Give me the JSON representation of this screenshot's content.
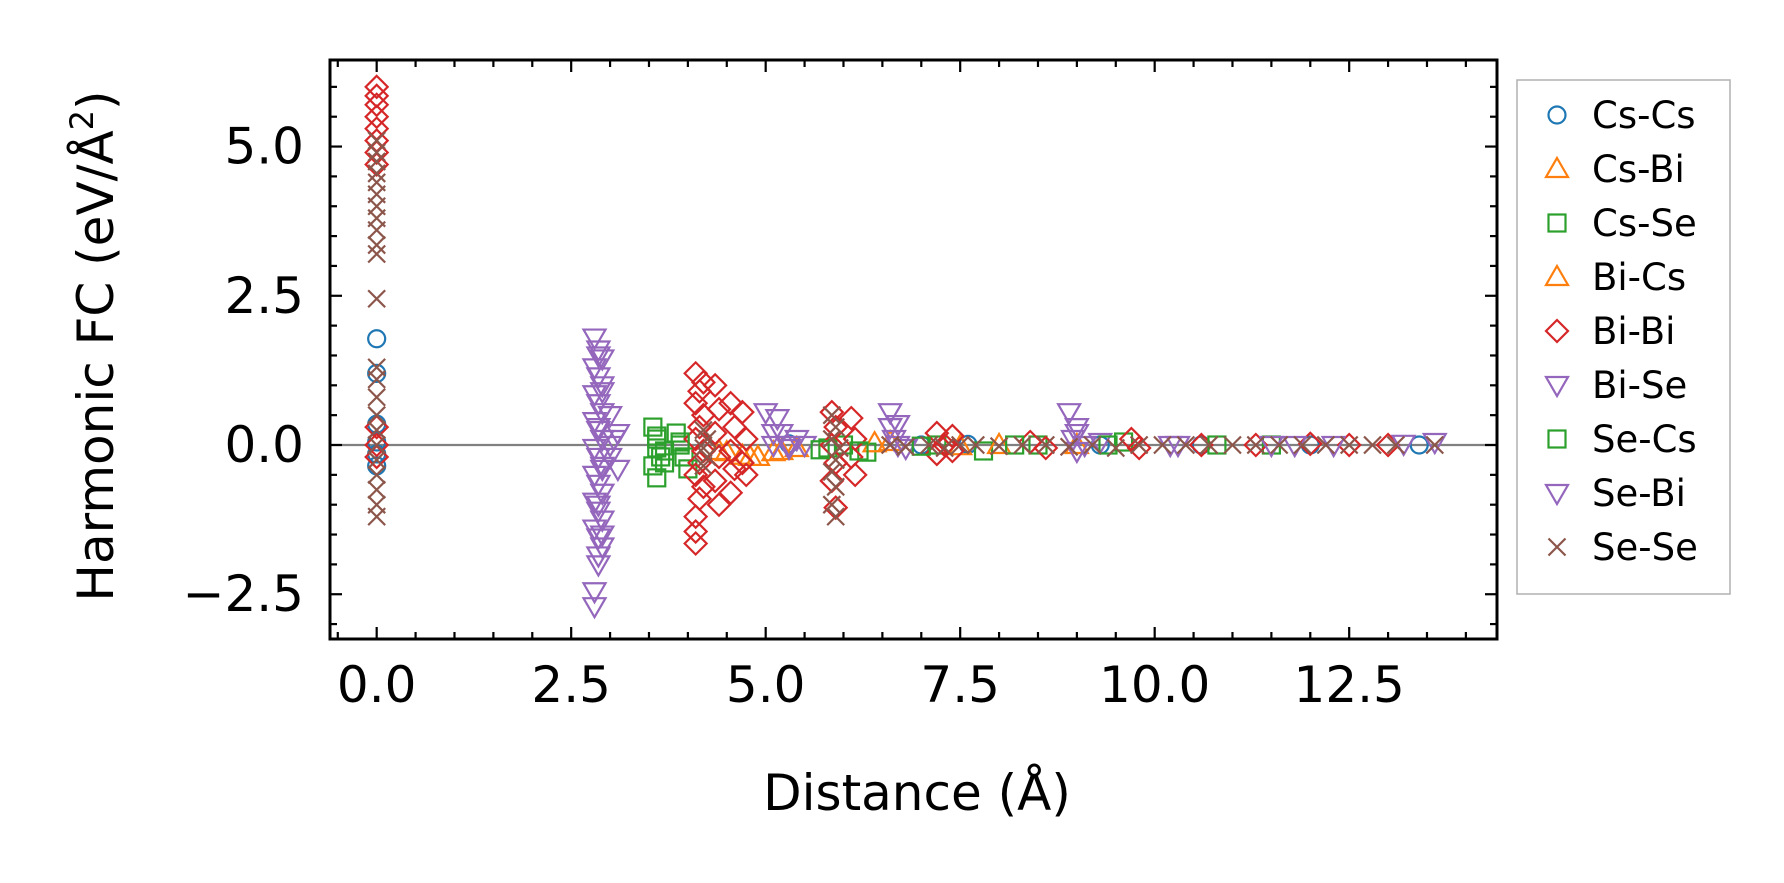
{
  "chart_data": {
    "type": "scatter",
    "title": "",
    "xlabel": "Distance (Å)",
    "ylabel": "Harmonic FC (eV/Å²)",
    "ylabel_main": "Harmonic FC (eV/Å",
    "ylabel_sup": "2",
    "ylabel_close": ")",
    "xlim": [
      -0.6,
      14.4
    ],
    "ylim": [
      -3.25,
      6.45
    ],
    "xticks": [
      0.0,
      2.5,
      5.0,
      7.5,
      10.0,
      12.5
    ],
    "xtick_labels": [
      "0.0",
      "2.5",
      "5.0",
      "7.5",
      "10.0",
      "12.5"
    ],
    "yticks": [
      -2.5,
      0.0,
      2.5,
      5.0
    ],
    "ytick_labels": [
      "−2.5",
      "0.0",
      "2.5",
      "5.0"
    ],
    "minor_step": 0.5,
    "zero_line": true,
    "legend_position": "right-outside-top",
    "series": [
      {
        "name": "Cs-Cs",
        "marker": "circle",
        "color": "#1f77b4",
        "points": [
          [
            0,
            1.78
          ],
          [
            0,
            1.2
          ],
          [
            0,
            0.35
          ],
          [
            0,
            0.05
          ],
          [
            0,
            -0.15
          ],
          [
            0,
            -0.35
          ],
          [
            5.3,
            0.02
          ],
          [
            7.0,
            0.0
          ],
          [
            7.6,
            0.01
          ],
          [
            9.3,
            0.0
          ],
          [
            10.6,
            0.0
          ],
          [
            12.0,
            0.0
          ],
          [
            13.4,
            0.0
          ]
        ]
      },
      {
        "name": "Cs-Bi",
        "marker": "triangle-up",
        "color": "#ff7f0e",
        "points": [
          [
            4.4,
            -0.1
          ],
          [
            4.7,
            -0.18
          ],
          [
            4.9,
            -0.2
          ],
          [
            5.1,
            -0.12
          ],
          [
            5.4,
            -0.05
          ],
          [
            6.6,
            0.05
          ],
          [
            7.5,
            -0.02
          ],
          [
            9.0,
            0.0
          ]
        ]
      },
      {
        "name": "Cs-Se",
        "marker": "square",
        "color": "#2ca02c",
        "points": [
          [
            3.55,
            0.3
          ],
          [
            3.6,
            0.1
          ],
          [
            3.6,
            -0.05
          ],
          [
            3.65,
            -0.2
          ],
          [
            3.55,
            -0.35
          ],
          [
            3.6,
            -0.55
          ],
          [
            3.7,
            -0.1
          ],
          [
            3.85,
            0.2
          ],
          [
            3.9,
            0.0
          ],
          [
            3.95,
            -0.2
          ],
          [
            4.0,
            -0.4
          ],
          [
            5.8,
            -0.05
          ],
          [
            6.0,
            0.0
          ],
          [
            6.3,
            -0.12
          ],
          [
            7.2,
            0.0
          ],
          [
            7.8,
            -0.1
          ],
          [
            8.5,
            0.0
          ],
          [
            9.6,
            0.05
          ],
          [
            11.5,
            0.0
          ]
        ]
      },
      {
        "name": "Bi-Cs",
        "marker": "triangle-up",
        "color": "#ff7f0e",
        "points": [
          [
            4.5,
            -0.12
          ],
          [
            4.8,
            -0.2
          ],
          [
            5.2,
            -0.1
          ],
          [
            6.4,
            0.03
          ],
          [
            8.0,
            0.0
          ]
        ]
      },
      {
        "name": "Bi-Bi",
        "marker": "diamond",
        "color": "#d62728",
        "points": [
          [
            0,
            6.0
          ],
          [
            0,
            5.85
          ],
          [
            0,
            5.7
          ],
          [
            0,
            5.5
          ],
          [
            0,
            5.3
          ],
          [
            0,
            5.1
          ],
          [
            0,
            4.9
          ],
          [
            0,
            4.7
          ],
          [
            0,
            0.3
          ],
          [
            0,
            0.0
          ],
          [
            0,
            -0.2
          ],
          [
            4.1,
            1.2
          ],
          [
            4.2,
            1.05
          ],
          [
            4.15,
            0.9
          ],
          [
            4.1,
            0.7
          ],
          [
            4.2,
            0.5
          ],
          [
            4.15,
            0.3
          ],
          [
            4.1,
            0.1
          ],
          [
            4.2,
            -0.1
          ],
          [
            4.15,
            -0.3
          ],
          [
            4.1,
            -0.5
          ],
          [
            4.2,
            -0.7
          ],
          [
            4.15,
            -0.9
          ],
          [
            4.1,
            -1.2
          ],
          [
            4.1,
            -1.45
          ],
          [
            4.1,
            -1.65
          ],
          [
            4.35,
            1.0
          ],
          [
            4.4,
            0.6
          ],
          [
            4.35,
            0.2
          ],
          [
            4.4,
            -0.2
          ],
          [
            4.35,
            -0.6
          ],
          [
            4.4,
            -1.0
          ],
          [
            4.55,
            0.7
          ],
          [
            4.6,
            0.3
          ],
          [
            4.55,
            -0.1
          ],
          [
            4.6,
            -0.4
          ],
          [
            4.55,
            -0.8
          ],
          [
            4.7,
            0.55
          ],
          [
            4.75,
            0.1
          ],
          [
            4.7,
            -0.3
          ],
          [
            4.75,
            -0.5
          ],
          [
            5.85,
            0.55
          ],
          [
            5.9,
            0.3
          ],
          [
            5.85,
            0.0
          ],
          [
            5.9,
            -0.3
          ],
          [
            5.85,
            -0.6
          ],
          [
            5.9,
            -1.05
          ],
          [
            6.1,
            0.45
          ],
          [
            6.15,
            0.1
          ],
          [
            6.1,
            -0.2
          ],
          [
            6.15,
            -0.5
          ],
          [
            7.2,
            0.2
          ],
          [
            7.3,
            0.0
          ],
          [
            7.2,
            -0.15
          ],
          [
            7.4,
            0.15
          ],
          [
            7.4,
            -0.1
          ],
          [
            8.4,
            0.05
          ],
          [
            8.6,
            -0.05
          ],
          [
            9.7,
            0.1
          ],
          [
            9.8,
            -0.05
          ],
          [
            10.6,
            0.0
          ],
          [
            11.3,
            0.0
          ],
          [
            12.0,
            0.02
          ],
          [
            12.5,
            0.0
          ],
          [
            13.0,
            0.0
          ]
        ]
      },
      {
        "name": "Bi-Se",
        "marker": "triangle-down",
        "color": "#9467bd",
        "points": [
          [
            2.8,
            1.8
          ],
          [
            2.85,
            1.6
          ],
          [
            2.9,
            1.45
          ],
          [
            2.8,
            1.3
          ],
          [
            2.85,
            1.15
          ],
          [
            2.9,
            1.0
          ],
          [
            2.8,
            0.85
          ],
          [
            2.85,
            0.7
          ],
          [
            2.9,
            0.55
          ],
          [
            2.8,
            0.4
          ],
          [
            2.85,
            0.25
          ],
          [
            2.9,
            0.1
          ],
          [
            2.8,
            -0.05
          ],
          [
            2.85,
            -0.2
          ],
          [
            2.9,
            -0.35
          ],
          [
            2.8,
            -0.5
          ],
          [
            2.85,
            -0.65
          ],
          [
            2.9,
            -0.8
          ],
          [
            2.8,
            -0.95
          ],
          [
            2.85,
            -1.1
          ],
          [
            2.9,
            -1.25
          ],
          [
            2.8,
            -1.4
          ],
          [
            2.85,
            -1.55
          ],
          [
            2.9,
            -1.7
          ],
          [
            2.85,
            -1.85
          ],
          [
            2.85,
            -2.0
          ],
          [
            2.8,
            -2.45
          ],
          [
            2.8,
            -2.7
          ],
          [
            3.0,
            0.5
          ],
          [
            3.05,
            0.1
          ],
          [
            3.0,
            -0.2
          ],
          [
            3.1,
            -0.4
          ],
          [
            3.1,
            0.2
          ],
          [
            5.0,
            0.55
          ],
          [
            5.15,
            0.45
          ],
          [
            5.2,
            0.2
          ],
          [
            5.1,
            0.0
          ],
          [
            5.3,
            -0.05
          ],
          [
            5.4,
            0.1
          ],
          [
            5.5,
            0.0
          ],
          [
            6.6,
            0.55
          ],
          [
            6.7,
            0.35
          ],
          [
            6.65,
            0.1
          ],
          [
            6.8,
            -0.05
          ],
          [
            8.9,
            0.55
          ],
          [
            9.0,
            0.3
          ],
          [
            8.95,
            0.1
          ],
          [
            9.0,
            -0.1
          ],
          [
            9.3,
            0.05
          ],
          [
            10.3,
            0.0
          ],
          [
            11.5,
            0.0
          ],
          [
            12.3,
            0.0
          ],
          [
            13.6,
            0.05
          ]
        ]
      },
      {
        "name": "Se-Cs",
        "marker": "square",
        "color": "#2ca02c",
        "points": [
          [
            3.6,
            0.15
          ],
          [
            3.7,
            -0.3
          ],
          [
            3.9,
            0.05
          ],
          [
            5.7,
            -0.08
          ],
          [
            6.2,
            -0.1
          ],
          [
            7.0,
            -0.02
          ],
          [
            8.2,
            0.0
          ],
          [
            9.4,
            0.0
          ],
          [
            10.8,
            0.0
          ]
        ]
      },
      {
        "name": "Se-Bi",
        "marker": "triangle-down",
        "color": "#9467bd",
        "points": [
          [
            2.85,
            1.5
          ],
          [
            2.9,
            0.9
          ],
          [
            2.85,
            0.3
          ],
          [
            2.9,
            -0.4
          ],
          [
            2.85,
            -1.0
          ],
          [
            2.9,
            -1.5
          ],
          [
            3.0,
            0.0
          ],
          [
            5.1,
            0.2
          ],
          [
            5.3,
            0.0
          ],
          [
            6.6,
            0.3
          ],
          [
            6.7,
            0.0
          ],
          [
            9.0,
            0.2
          ],
          [
            9.1,
            0.0
          ],
          [
            10.2,
            0.0
          ],
          [
            11.8,
            0.0
          ],
          [
            13.2,
            0.02
          ]
        ]
      },
      {
        "name": "Se-Se",
        "marker": "x",
        "color": "#8c564b",
        "points": [
          [
            0,
            5.1
          ],
          [
            0,
            4.9
          ],
          [
            0,
            4.75
          ],
          [
            0,
            4.55
          ],
          [
            0,
            4.4
          ],
          [
            0,
            4.2
          ],
          [
            0,
            4.0
          ],
          [
            0,
            3.8
          ],
          [
            0,
            3.6
          ],
          [
            0,
            3.35
          ],
          [
            0,
            3.2
          ],
          [
            0,
            2.45
          ],
          [
            0,
            1.3
          ],
          [
            0,
            1.1
          ],
          [
            0,
            0.8
          ],
          [
            0,
            0.5
          ],
          [
            0,
            0.25
          ],
          [
            0,
            0.0
          ],
          [
            0,
            -0.25
          ],
          [
            0,
            -0.5
          ],
          [
            0,
            -0.75
          ],
          [
            0,
            -1.0
          ],
          [
            0,
            -1.2
          ],
          [
            4.2,
            0.25
          ],
          [
            4.25,
            0.1
          ],
          [
            4.2,
            -0.05
          ],
          [
            4.25,
            -0.2
          ],
          [
            4.2,
            -0.35
          ],
          [
            5.85,
            0.5
          ],
          [
            5.9,
            0.3
          ],
          [
            5.85,
            0.1
          ],
          [
            5.95,
            -0.05
          ],
          [
            5.9,
            -0.25
          ],
          [
            5.85,
            -0.45
          ],
          [
            5.9,
            -0.7
          ],
          [
            5.85,
            -1.0
          ],
          [
            5.9,
            -1.2
          ],
          [
            6.6,
            0.0
          ],
          [
            6.8,
            -0.03
          ],
          [
            7.1,
            0.0
          ],
          [
            7.3,
            -0.05
          ],
          [
            7.5,
            0.0
          ],
          [
            7.7,
            0.0
          ],
          [
            8.0,
            -0.02
          ],
          [
            8.3,
            0.0
          ],
          [
            8.6,
            0.0
          ],
          [
            8.9,
            -0.03
          ],
          [
            9.2,
            0.0
          ],
          [
            9.5,
            -0.05
          ],
          [
            9.8,
            0.0
          ],
          [
            10.1,
            0.0
          ],
          [
            10.4,
            0.0
          ],
          [
            10.7,
            0.0
          ],
          [
            11.0,
            0.0
          ],
          [
            11.3,
            0.0
          ],
          [
            11.6,
            0.0
          ],
          [
            11.9,
            0.0
          ],
          [
            12.2,
            0.0
          ],
          [
            12.5,
            0.0
          ],
          [
            12.8,
            0.0
          ],
          [
            13.1,
            0.0
          ],
          [
            13.6,
            0.0
          ]
        ]
      }
    ]
  }
}
